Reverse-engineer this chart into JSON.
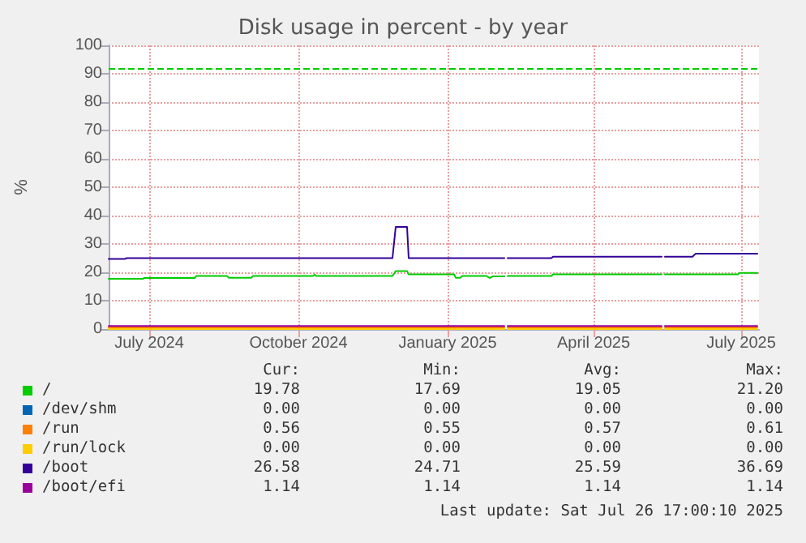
{
  "chart_data": {
    "type": "line",
    "title": "Disk usage in percent - by year",
    "ylabel": "%",
    "xlim": [
      "2024-06-21",
      "2025-07-27"
    ],
    "xticks": [
      {
        "value": "2024-07-16",
        "label": "July 2024"
      },
      {
        "value": "2024-10-16",
        "label": "October 2024"
      },
      {
        "value": "2025-01-16",
        "label": "January 2025"
      },
      {
        "value": "2025-04-16",
        "label": "April 2025"
      },
      {
        "value": "2025-07-16",
        "label": "July 2025"
      }
    ],
    "ylim": [
      0,
      100
    ],
    "yticks": [
      0,
      10,
      20,
      30,
      40,
      50,
      60,
      70,
      80,
      90,
      100
    ],
    "grid": true,
    "legend": "bottom",
    "marker": "none",
    "line_style": "solid",
    "ref_lines": [
      {
        "axis": "y",
        "value": 92,
        "color": "#00cc00",
        "line_style": "dashed"
      }
    ],
    "series": [
      {
        "name": "/",
        "color": "#00cc00",
        "x": [
          "2024-06-21",
          "2024-07-12",
          "2024-07-13",
          "2024-08-13",
          "2024-08-14",
          "2024-09-02",
          "2024-09-03",
          "2024-09-17",
          "2024-09-18",
          "2024-10-25",
          "2024-10-26",
          "2024-10-27",
          "2024-12-13",
          "2024-12-15",
          "2024-12-22",
          "2024-12-23",
          "2025-01-20",
          "2025-01-21",
          "2025-01-24",
          "2025-01-25",
          "2025-02-09",
          "2025-02-11",
          "2025-02-13",
          "2025-02-20",
          "2025-02-21",
          "2025-02-22",
          "2025-03-21",
          "2025-03-22",
          "2025-05-28",
          "2025-05-29",
          "2025-05-30",
          "2025-07-14",
          "2025-07-15",
          "2025-07-26"
        ],
        "values": [
          17.7,
          17.7,
          18.0,
          18.0,
          18.7,
          18.7,
          18.1,
          18.1,
          18.7,
          18.7,
          19.2,
          18.7,
          18.7,
          20.4,
          20.4,
          19.3,
          19.3,
          18.1,
          18.1,
          18.7,
          18.7,
          18.0,
          18.6,
          18.6,
          null,
          18.7,
          18.7,
          19.3,
          19.3,
          null,
          19.3,
          19.3,
          19.8,
          19.8
        ]
      },
      {
        "name": "/dev/shm",
        "color": "#0066b3"
      },
      {
        "name": "/run",
        "color": "#ff8000",
        "x": [
          "2024-06-21",
          "2025-02-20",
          "2025-02-21",
          "2025-02-22",
          "2025-05-28",
          "2025-05-29",
          "2025-05-30",
          "2025-07-26"
        ],
        "values": [
          0.6,
          0.6,
          null,
          0.6,
          0.6,
          null,
          0.6,
          0.6
        ]
      },
      {
        "name": "/run/lock",
        "color": "#ffcc00",
        "x": [
          "2024-06-21",
          "2025-02-20",
          "2025-02-21",
          "2025-02-22",
          "2025-05-28",
          "2025-05-29",
          "2025-05-30",
          "2025-07-26"
        ],
        "values": [
          0,
          0,
          null,
          0,
          0,
          null,
          0,
          0
        ]
      },
      {
        "name": "/boot",
        "color": "#330099",
        "x": [
          "2024-06-21",
          "2024-07-01",
          "2024-07-02",
          "2024-12-13",
          "2024-12-15",
          "2024-12-22",
          "2024-12-23",
          "2025-02-20",
          "2025-02-21",
          "2025-02-22",
          "2025-03-21",
          "2025-03-22",
          "2025-05-28",
          "2025-05-29",
          "2025-05-30",
          "2025-06-16",
          "2025-06-18",
          "2025-07-26"
        ],
        "values": [
          24.7,
          24.7,
          25.0,
          25.0,
          36.0,
          36.0,
          25.0,
          25.0,
          null,
          25.0,
          25.0,
          25.5,
          25.5,
          null,
          25.5,
          25.5,
          26.6,
          26.6
        ]
      },
      {
        "name": "/boot/efi",
        "color": "#990099",
        "x": [
          "2024-06-21",
          "2025-02-20",
          "2025-02-21",
          "2025-02-22",
          "2025-05-28",
          "2025-05-29",
          "2025-05-30",
          "2025-07-26"
        ],
        "values": [
          1.1,
          1.1,
          null,
          1.1,
          1.1,
          null,
          1.1,
          1.1
        ]
      }
    ],
    "annotations": [
      "Cur:",
      "Min:",
      "Avg:",
      "Max:",
      "19.78",
      "17.69",
      "19.05",
      "21.20",
      "0.00",
      "0.00",
      "0.00",
      "0.00",
      "0.56",
      "0.55",
      "0.57",
      "0.61",
      "0.00",
      "0.00",
      "0.00",
      "0.00",
      "26.58",
      "24.71",
      "25.59",
      "36.69",
      "1.14",
      "1.14",
      "1.14",
      "1.14",
      "Last update: Sat Jul 26 17:00:10 2025"
    ]
  }
}
